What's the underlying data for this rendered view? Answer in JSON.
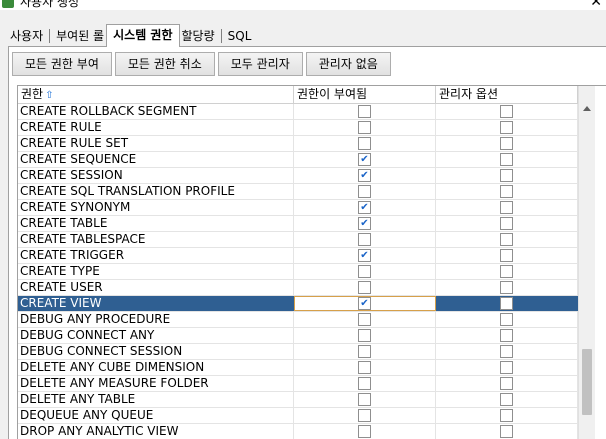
{
  "window": {
    "title": "사용자 생성",
    "close_glyph": "✕"
  },
  "tabs": [
    {
      "label": "사용자",
      "active": false
    },
    {
      "label": "부여된 롤",
      "active": false
    },
    {
      "label": "시스템 권한",
      "active": true
    },
    {
      "label": "할당량",
      "active": false
    },
    {
      "label": "SQL",
      "active": false
    }
  ],
  "buttons": {
    "grant_all": "모든 권한 부여",
    "revoke_all": "모든 권한 취소",
    "all_admin": "모두 관리자",
    "no_admin": "관리자 없음"
  },
  "table": {
    "headers": {
      "privilege": "권한",
      "granted": "권한이 부여됨",
      "admin": "관리자 옵션"
    },
    "sort_icon": "sort-ascending-icon",
    "rows": [
      {
        "name": "CREATE ROLLBACK SEGMENT",
        "granted": false,
        "admin": false
      },
      {
        "name": "CREATE RULE",
        "granted": false,
        "admin": false
      },
      {
        "name": "CREATE RULE SET",
        "granted": false,
        "admin": false
      },
      {
        "name": "CREATE SEQUENCE",
        "granted": true,
        "admin": false
      },
      {
        "name": "CREATE SESSION",
        "granted": true,
        "admin": false
      },
      {
        "name": "CREATE SQL TRANSLATION PROFILE",
        "granted": false,
        "admin": false
      },
      {
        "name": "CREATE SYNONYM",
        "granted": true,
        "admin": false
      },
      {
        "name": "CREATE TABLE",
        "granted": true,
        "admin": false
      },
      {
        "name": "CREATE TABLESPACE",
        "granted": false,
        "admin": false
      },
      {
        "name": "CREATE TRIGGER",
        "granted": true,
        "admin": false
      },
      {
        "name": "CREATE TYPE",
        "granted": false,
        "admin": false
      },
      {
        "name": "CREATE USER",
        "granted": false,
        "admin": false
      },
      {
        "name": "CREATE VIEW",
        "granted": true,
        "admin": false,
        "selected": true
      },
      {
        "name": "DEBUG ANY PROCEDURE",
        "granted": false,
        "admin": false
      },
      {
        "name": "DEBUG CONNECT ANY",
        "granted": false,
        "admin": false
      },
      {
        "name": "DEBUG CONNECT SESSION",
        "granted": false,
        "admin": false
      },
      {
        "name": "DELETE ANY CUBE DIMENSION",
        "granted": false,
        "admin": false
      },
      {
        "name": "DELETE ANY MEASURE FOLDER",
        "granted": false,
        "admin": false
      },
      {
        "name": "DELETE ANY TABLE",
        "granted": false,
        "admin": false
      },
      {
        "name": "DEQUEUE ANY QUEUE",
        "granted": false,
        "admin": false
      },
      {
        "name": "DROP ANY ANALYTIC VIEW",
        "granted": false,
        "admin": false
      }
    ]
  },
  "colors": {
    "selection": "#2f5f92",
    "check": "#1a64c8",
    "focus_outline": "#d6a04a"
  }
}
